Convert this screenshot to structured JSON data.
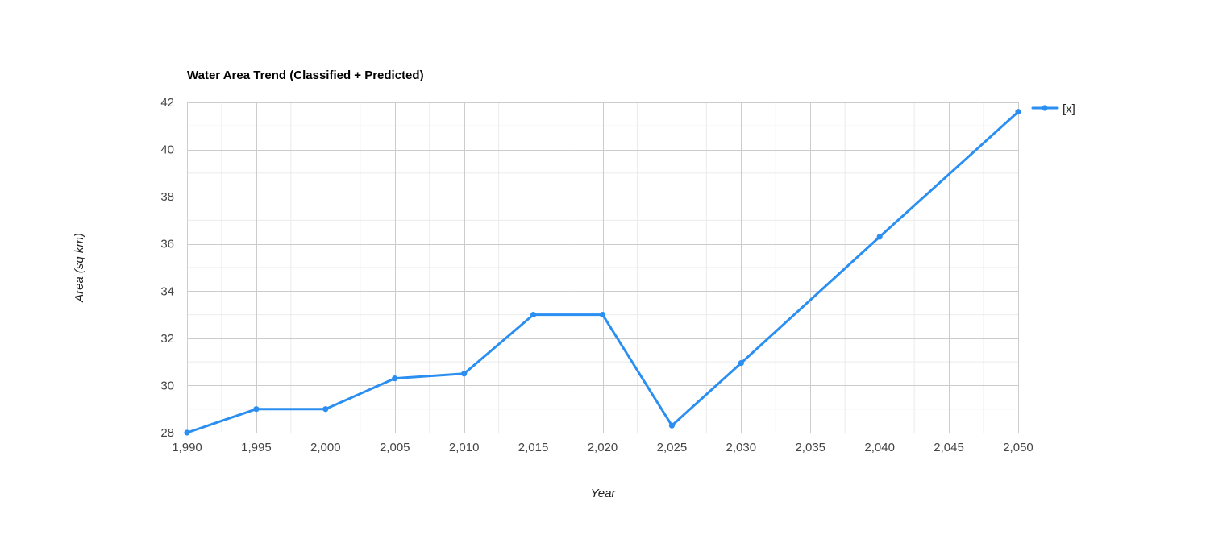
{
  "chart_data": {
    "type": "line",
    "title": "Water Area Trend (Classified + Predicted)",
    "xlabel": "Year",
    "ylabel": "Area (sq km)",
    "xlim": [
      1990,
      2050
    ],
    "ylim": [
      28,
      42
    ],
    "x_ticks": [
      1990,
      1995,
      2000,
      2005,
      2010,
      2015,
      2020,
      2025,
      2030,
      2035,
      2040,
      2045,
      2050
    ],
    "x_tick_labels": [
      "1,990",
      "1,995",
      "2,000",
      "2,005",
      "2,010",
      "2,015",
      "2,020",
      "2,025",
      "2,030",
      "2,035",
      "2,040",
      "2,045",
      "2,050"
    ],
    "y_ticks": [
      28,
      30,
      32,
      34,
      36,
      38,
      40,
      42
    ],
    "y_tick_labels": [
      "28",
      "30",
      "32",
      "34",
      "36",
      "38",
      "40",
      "42"
    ],
    "grid": true,
    "legend_position": "top-right",
    "series": [
      {
        "name": "[x]",
        "color": "#2a8ff0",
        "x": [
          1990,
          1995,
          2000,
          2005,
          2010,
          2015,
          2020,
          2025,
          2030,
          2040,
          2050
        ],
        "y": [
          28.0,
          29.0,
          29.0,
          30.3,
          30.5,
          33.0,
          33.0,
          28.3,
          30.95,
          36.3,
          41.6
        ]
      }
    ]
  }
}
